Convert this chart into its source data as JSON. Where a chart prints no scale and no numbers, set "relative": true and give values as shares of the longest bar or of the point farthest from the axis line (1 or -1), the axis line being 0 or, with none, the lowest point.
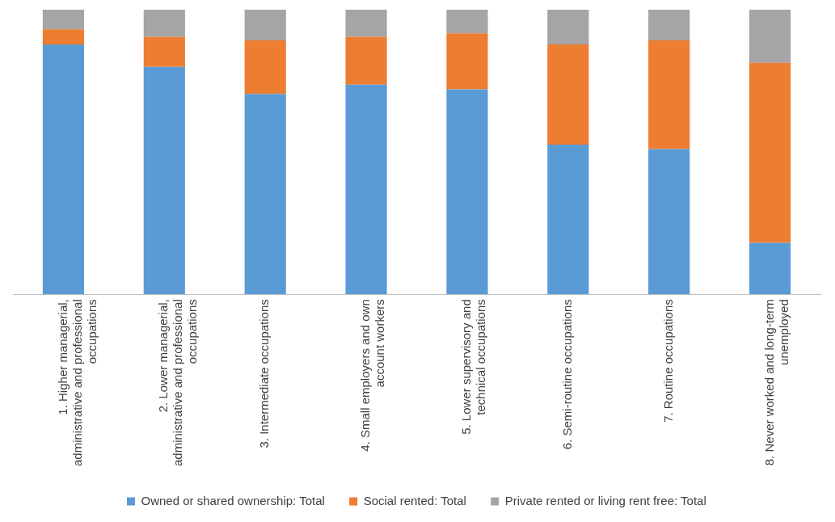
{
  "chart_data": {
    "type": "bar",
    "stacked": true,
    "relative": true,
    "legend": "bottom",
    "categories": [
      "1. Higher managerial, administrative and professional occupations",
      "2. Lower managerial, administrative and professional occupations",
      "3. Intermediate occupations",
      "4. Small employers and own account workers",
      "5. Lower supervisory and technical occupations",
      "6. Semi-routine occupations",
      "7. Routine occupations",
      "8. Never worked and long-term unemployed"
    ],
    "series": [
      {
        "name": "Owned or shared ownership: Total",
        "color": "#5b9bd5",
        "values": [
          0.878,
          0.799,
          0.704,
          0.737,
          0.72,
          0.526,
          0.51,
          0.181
        ]
      },
      {
        "name": "Social rented: Total",
        "color": "#ed7d31",
        "values": [
          0.053,
          0.105,
          0.188,
          0.168,
          0.197,
          0.352,
          0.382,
          0.632
        ]
      },
      {
        "name": "Private rented or living rent free: Total",
        "color": "#a5a5a5",
        "values": [
          0.069,
          0.096,
          0.108,
          0.095,
          0.083,
          0.122,
          0.108,
          0.187
        ]
      }
    ]
  }
}
